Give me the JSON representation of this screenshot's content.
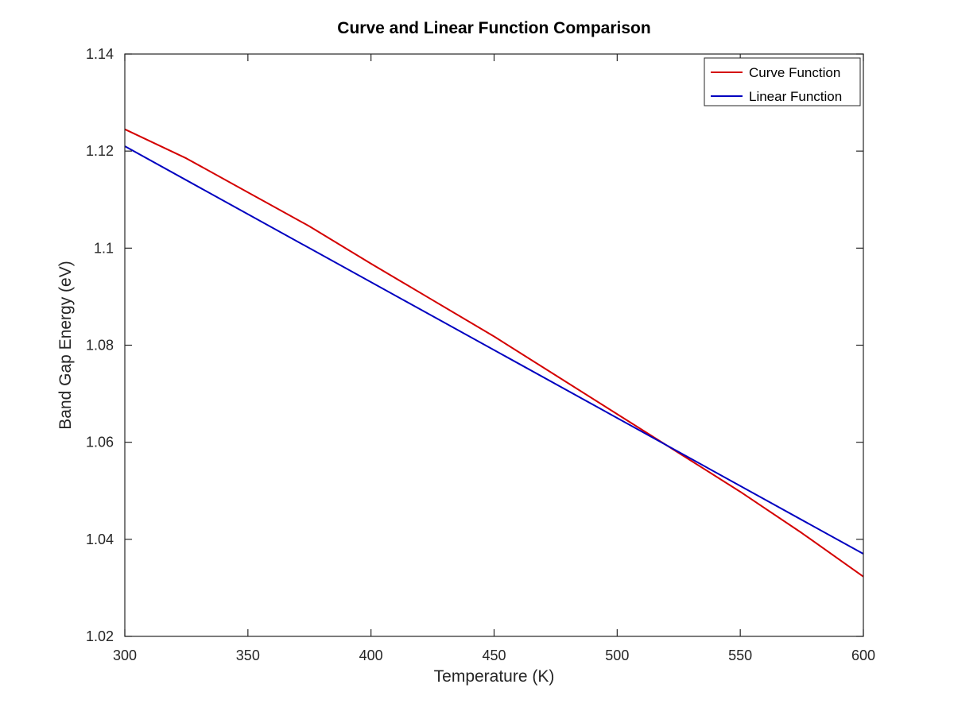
{
  "chart_data": {
    "type": "line",
    "title": "Curve and Linear Function Comparison",
    "xlabel": "Temperature (K)",
    "ylabel": "Band Gap Energy (eV)",
    "xlim": [
      300,
      600
    ],
    "ylim": [
      1.02,
      1.14
    ],
    "xticks": [
      300,
      350,
      400,
      450,
      500,
      550,
      600
    ],
    "xtick_labels": [
      "300",
      "350",
      "400",
      "450",
      "500",
      "550",
      "600"
    ],
    "yticks": [
      1.02,
      1.04,
      1.06,
      1.08,
      1.1,
      1.12,
      1.14
    ],
    "ytick_labels": [
      "1.02",
      "1.04",
      "1.06",
      "1.08",
      "1.1",
      "1.12",
      "1.14"
    ],
    "grid": false,
    "legend_position": "top-right",
    "series": [
      {
        "name": "Curve Function",
        "color": "#d40000",
        "x": [
          300,
          325,
          350,
          375,
          400,
          425,
          450,
          475,
          500,
          525,
          550,
          575,
          600
        ],
        "y": [
          1.1245,
          1.1185,
          1.1115,
          1.1045,
          1.0968,
          1.0893,
          1.0818,
          1.0738,
          1.0658,
          1.0578,
          1.0498,
          1.0413,
          1.0323
        ]
      },
      {
        "name": "Linear Function",
        "color": "#0000c0",
        "x": [
          300,
          600
        ],
        "y": [
          1.121,
          1.037
        ]
      }
    ]
  }
}
